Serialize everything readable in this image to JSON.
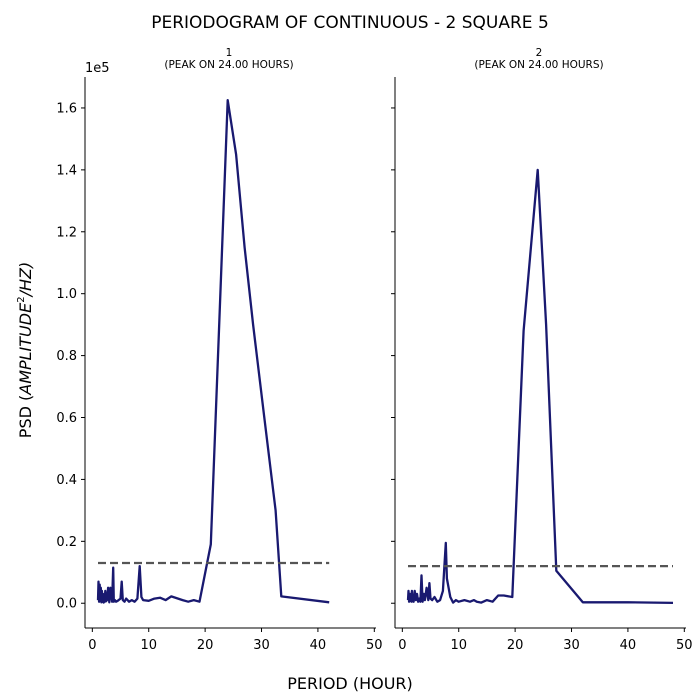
{
  "figure": {
    "title": "PERIODOGRAM OF CONTINUOUS - 2 SQUARE 5",
    "xlabel": "PERIOD (HOUR)",
    "ylabel": "PSD (",
    "ylabel_math": "AMPLITUDE",
    "ylabel_sup": "2",
    "ylabel_tail": "/HZ)",
    "offset_text": "1e5",
    "line_color": "#191970",
    "threshold_color": "#555555"
  },
  "chart_data": [
    {
      "type": "line",
      "title_line1": "1",
      "title_line2": "(PEAK ON 24.00 HOURS)",
      "xlim": [
        -1.3,
        50.3
      ],
      "ylim": [
        -8000,
        170000
      ],
      "xticks": [
        "0",
        "10",
        "20",
        "30",
        "40",
        "50"
      ],
      "yticks": [
        "0.0",
        "0.2",
        "0.4",
        "0.6",
        "0.8",
        "1.0",
        "1.2",
        "1.4",
        "1.6"
      ],
      "series": [
        {
          "kind": "psd",
          "x": [
            1.0,
            1.1,
            1.2,
            1.3,
            1.4,
            1.5,
            1.6,
            1.7,
            1.8,
            1.9,
            2.0,
            2.1,
            2.2,
            2.3,
            2.4,
            2.6,
            2.8,
            3.0,
            3.2,
            3.5,
            3.7,
            3.8,
            4.0,
            4.2,
            4.5,
            5.0,
            5.2,
            5.4,
            5.7,
            6.0,
            6.5,
            7.0,
            7.5,
            8.0,
            8.4,
            8.7,
            9.0,
            10.0,
            11.0,
            12.0,
            13.0,
            14.0,
            16.0,
            17.0,
            18.0,
            19.0,
            21.0,
            22.5,
            24.0,
            25.5,
            27.0,
            28.5,
            30.5,
            32.5,
            33.5,
            42.0
          ],
          "y": [
            1000,
            7000,
            500,
            6000,
            1000,
            5000,
            300,
            4000,
            500,
            3000,
            200,
            2000,
            500,
            4000,
            600,
            1000,
            5000,
            300,
            5000,
            500,
            11500,
            500,
            1000,
            500,
            800,
            1500,
            7000,
            1000,
            500,
            1500,
            500,
            1000,
            500,
            1500,
            12000,
            2000,
            1000,
            800,
            1500,
            1800,
            1000,
            2200,
            1000,
            500,
            1000,
            500,
            19000,
            90000,
            162500,
            145000,
            115000,
            90000,
            60000,
            30000,
            2200,
            300
          ]
        },
        {
          "kind": "threshold",
          "x": [
            1.0,
            42.0
          ],
          "y": [
            13000,
            13000
          ]
        }
      ]
    },
    {
      "type": "line",
      "title_line1": "2",
      "title_line2": "(PEAK ON 24.00 HOURS)",
      "xlim": [
        -1.3,
        50.3
      ],
      "ylim": [
        -8000,
        170000
      ],
      "xticks": [
        "0",
        "10",
        "20",
        "30",
        "40",
        "50"
      ],
      "yticks": [],
      "series": [
        {
          "kind": "psd",
          "x": [
            1.0,
            1.1,
            1.2,
            1.3,
            1.4,
            1.5,
            1.6,
            1.7,
            1.8,
            1.9,
            2.0,
            2.2,
            2.4,
            2.6,
            2.8,
            3.0,
            3.2,
            3.4,
            3.6,
            3.8,
            4.0,
            4.3,
            4.6,
            4.8,
            5.0,
            5.3,
            5.7,
            6.2,
            6.7,
            7.2,
            7.7,
            7.9,
            8.2,
            8.5,
            9.0,
            9.5,
            10.0,
            11.0,
            12.0,
            12.7,
            13.2,
            14.0,
            15.0,
            16.0,
            17.0,
            18.0,
            19.5,
            21.5,
            24.0,
            25.5,
            27.3,
            32.0,
            40.0,
            48.0
          ],
          "y": [
            1000,
            4000,
            500,
            3000,
            800,
            3000,
            500,
            4000,
            600,
            2000,
            500,
            4000,
            1000,
            3000,
            500,
            1500,
            500,
            9000,
            500,
            3000,
            1000,
            5000,
            1000,
            6500,
            1500,
            1000,
            2000,
            500,
            1000,
            4000,
            19500,
            8000,
            5000,
            2000,
            200,
            1000,
            500,
            1000,
            500,
            1000,
            500,
            200,
            1000,
            500,
            2500,
            2500,
            2000,
            88000,
            140000,
            90000,
            10500,
            300,
            300,
            100
          ]
        },
        {
          "kind": "threshold",
          "x": [
            1.0,
            48.0
          ],
          "y": [
            12000,
            12000
          ]
        }
      ]
    }
  ]
}
